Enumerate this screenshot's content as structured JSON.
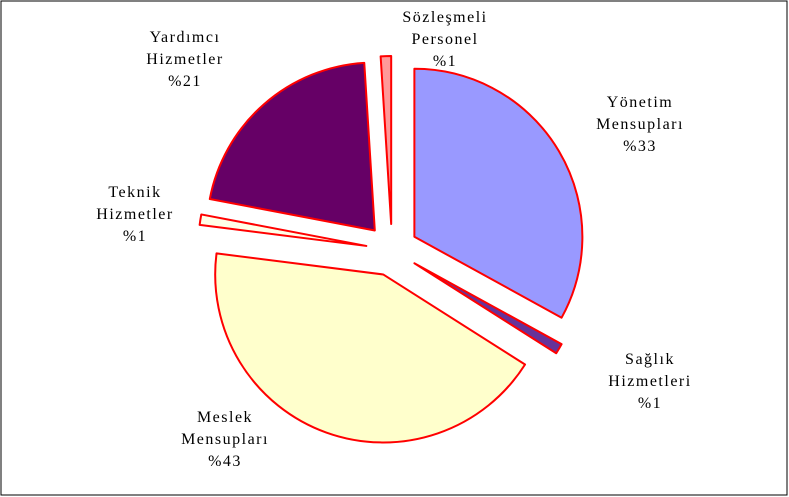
{
  "chart_data": {
    "type": "pie",
    "categories": [
      "Yönetim Mensupları",
      "Sağlık Hizmetleri",
      "Meslek Mensupları",
      "Teknik Hizmetler",
      "Yardımcı Hizmetler",
      "Sözleşmeli Personel"
    ],
    "values": [
      33,
      1,
      43,
      1,
      21,
      1
    ],
    "value_labels": [
      "%33",
      "%1",
      "%43",
      "%1",
      "%21",
      "%1"
    ],
    "colors": [
      "#9999ff",
      "#663399",
      "#ffffcc",
      "#ffffe8",
      "#660066",
      "#ff9999"
    ]
  }
}
